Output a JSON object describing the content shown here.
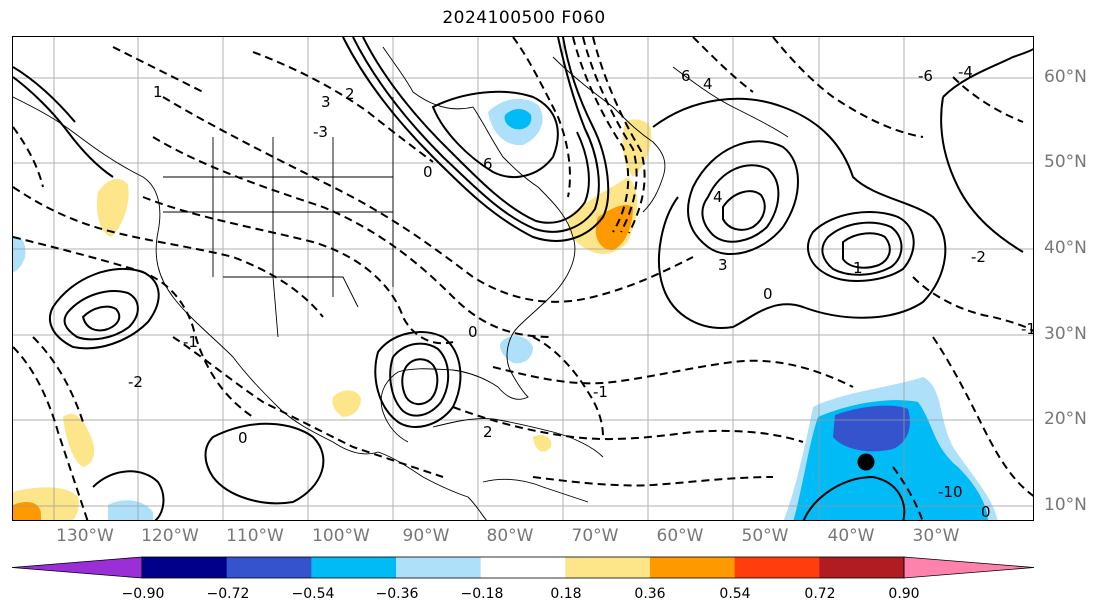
{
  "title": "2024100500 F060",
  "lon_labels": [
    "130°W",
    "120°W",
    "110°W",
    "100°W",
    "90°W",
    "80°W",
    "70°W",
    "60°W",
    "50°W",
    "40°W",
    "30°W"
  ],
  "lat_labels": [
    "60°N",
    "50°N",
    "40°N",
    "30°N",
    "20°N",
    "10°N"
  ],
  "colorbar": {
    "ticks": [
      "−0.90",
      "−0.72",
      "−0.54",
      "−0.36",
      "−0.18",
      "0.18",
      "0.36",
      "0.54",
      "0.72",
      "0.90"
    ],
    "colors": [
      "#9a2fd8",
      "#00008a",
      "#3553cc",
      "#00bbf5",
      "#aee0fa",
      "#ffffff",
      "#fde68a",
      "#ff9900",
      "#ff3d0d",
      "#b01c22",
      "#ff82ad"
    ]
  },
  "contour_labels": [
    "6",
    "4",
    "3",
    "2",
    "1",
    "0",
    "0",
    "-1",
    "-2",
    "-3",
    "-6",
    "-4",
    "6",
    "4",
    "3",
    "0",
    "-1",
    "-2",
    "-10",
    "0",
    "-1",
    "1",
    "2",
    "0"
  ],
  "markers": [
    {
      "name": "storm-center",
      "symbol": "●"
    }
  ]
}
